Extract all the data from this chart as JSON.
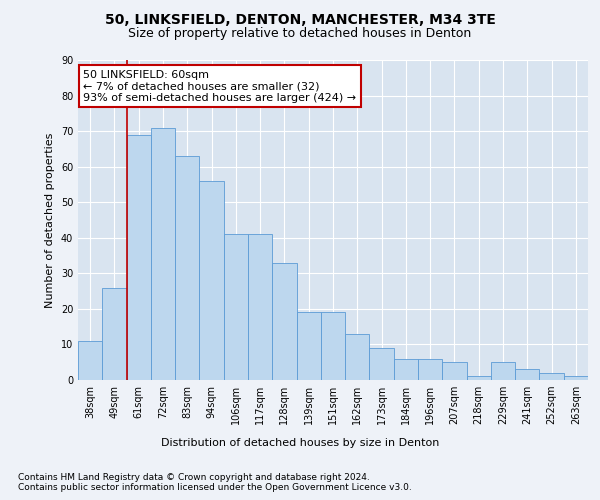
{
  "title1": "50, LINKSFIELD, DENTON, MANCHESTER, M34 3TE",
  "title2": "Size of property relative to detached houses in Denton",
  "xlabel": "Distribution of detached houses by size in Denton",
  "ylabel": "Number of detached properties",
  "categories": [
    "38sqm",
    "49sqm",
    "61sqm",
    "72sqm",
    "83sqm",
    "94sqm",
    "106sqm",
    "117sqm",
    "128sqm",
    "139sqm",
    "151sqm",
    "162sqm",
    "173sqm",
    "184sqm",
    "196sqm",
    "207sqm",
    "218sqm",
    "229sqm",
    "241sqm",
    "252sqm",
    "263sqm"
  ],
  "values": [
    11,
    26,
    69,
    71,
    63,
    56,
    41,
    41,
    33,
    19,
    19,
    13,
    9,
    6,
    6,
    5,
    1,
    5,
    3,
    2,
    1
  ],
  "bar_color": "#bdd7ee",
  "bar_edge_color": "#5b9bd5",
  "highlight_bar_index": 2,
  "highlight_line_color": "#c00000",
  "annotation_text": "50 LINKSFIELD: 60sqm\n← 7% of detached houses are smaller (32)\n93% of semi-detached houses are larger (424) →",
  "annotation_box_color": "#ffffff",
  "annotation_box_edge_color": "#c00000",
  "ylim": [
    0,
    90
  ],
  "yticks": [
    0,
    10,
    20,
    30,
    40,
    50,
    60,
    70,
    80,
    90
  ],
  "footer1": "Contains HM Land Registry data © Crown copyright and database right 2024.",
  "footer2": "Contains public sector information licensed under the Open Government Licence v3.0.",
  "background_color": "#eef2f8",
  "plot_background_color": "#d9e4f0",
  "grid_color": "#ffffff",
  "title1_fontsize": 10,
  "title2_fontsize": 9,
  "axis_label_fontsize": 8,
  "tick_fontsize": 7,
  "footer_fontsize": 6.5,
  "annotation_fontsize": 8
}
